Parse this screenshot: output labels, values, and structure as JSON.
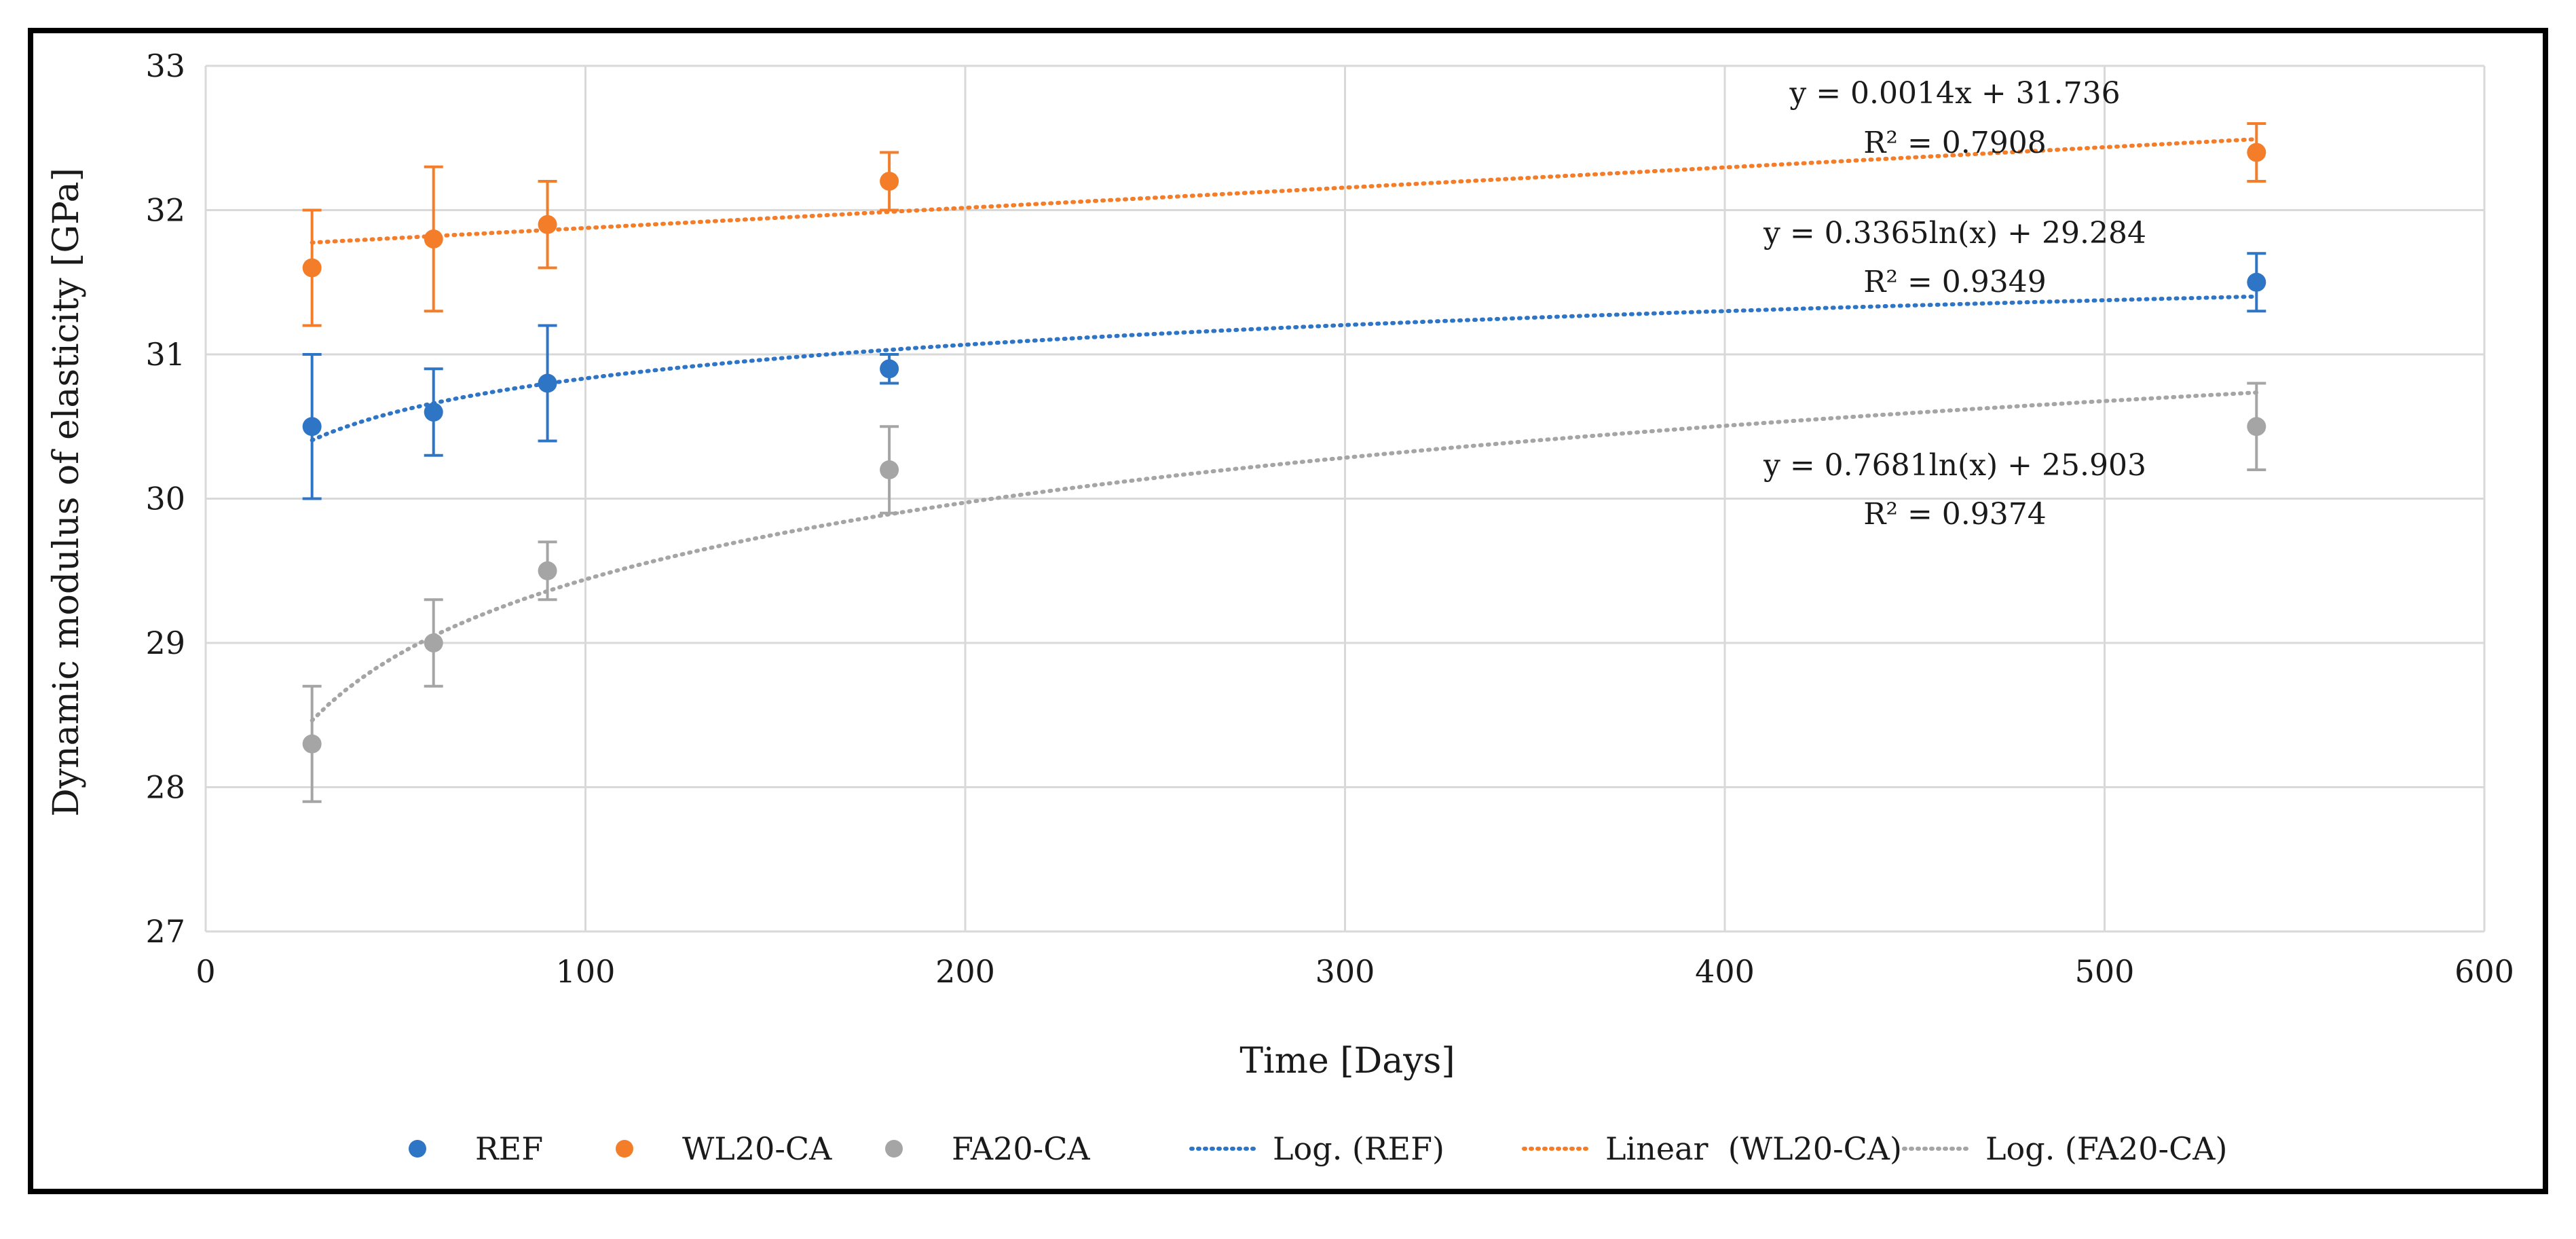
{
  "chart_data": {
    "type": "scatter",
    "title": "",
    "xlabel": "Time [Days]",
    "ylabel": "Dynamic modulus of elasticity [GPa]",
    "xlim": [
      0,
      600
    ],
    "ylim": [
      27,
      33
    ],
    "x_ticks": [
      0,
      100,
      200,
      300,
      400,
      500,
      600
    ],
    "y_ticks": [
      27,
      28,
      29,
      30,
      31,
      32,
      33
    ],
    "x_tick_labels": [
      "0",
      "100",
      "200",
      "300",
      "400",
      "500",
      "600"
    ],
    "y_tick_labels": [
      "27",
      "28",
      "29",
      "30",
      "31",
      "32",
      "33"
    ],
    "grid": true,
    "legend_position": "bottom",
    "series": [
      {
        "name": "REF",
        "color": "#2e75c6",
        "x": [
          28,
          60,
          90,
          180,
          540
        ],
        "values": [
          30.5,
          30.6,
          30.8,
          30.9,
          31.5
        ],
        "error": [
          0.5,
          0.3,
          0.4,
          0.1,
          0.2
        ]
      },
      {
        "name": "WL20-CA",
        "color": "#f47d2a",
        "x": [
          28,
          60,
          90,
          180,
          540
        ],
        "values": [
          31.6,
          31.8,
          31.9,
          32.2,
          32.4
        ],
        "error": [
          0.4,
          0.5,
          0.3,
          0.2,
          0.2
        ]
      },
      {
        "name": "FA20-CA",
        "color": "#a5a5a5",
        "x": [
          28,
          60,
          90,
          180,
          540
        ],
        "values": [
          28.3,
          29.0,
          29.5,
          30.2,
          30.5
        ],
        "error": [
          0.4,
          0.3,
          0.2,
          0.3,
          0.3
        ]
      }
    ],
    "trendlines": [
      {
        "name": "Log. (REF)",
        "series": "REF",
        "kind": "log",
        "a": 0.3365,
        "b": 29.284,
        "x_range": [
          28,
          540
        ],
        "color": "#2e75c6",
        "equation": "y = 0.3365ln(x) + 29.284",
        "r2": "R² = 0.9349"
      },
      {
        "name": "Linear  (WL20-CA)",
        "series": "WL20-CA",
        "kind": "linear",
        "a": 0.0014,
        "b": 31.736,
        "x_range": [
          28,
          540
        ],
        "color": "#f47d2a",
        "equation": "y = 0.0014x + 31.736",
        "r2": "R² = 0.7908"
      },
      {
        "name": "Log. (FA20-CA)",
        "series": "FA20-CA",
        "kind": "log",
        "a": 0.7681,
        "b": 25.903,
        "x_range": [
          28,
          540
        ],
        "color": "#a5a5a5",
        "equation": "y = 0.7681ln(x) + 25.903",
        "r2": "R² = 0.9374"
      }
    ]
  }
}
